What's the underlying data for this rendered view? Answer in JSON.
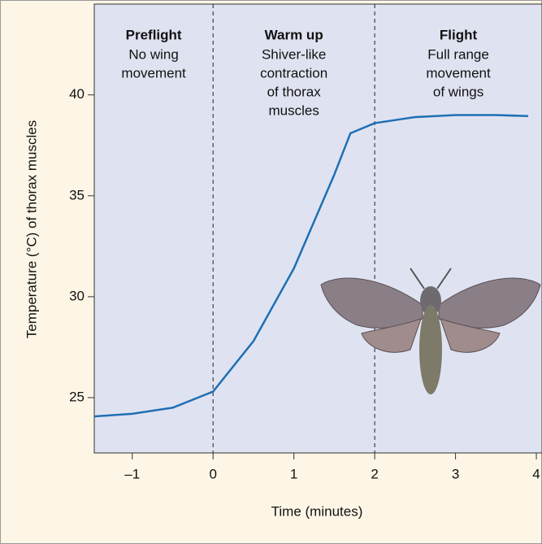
{
  "chart_data": {
    "type": "line",
    "x_label": "Time (minutes)",
    "y_label": "Temperature (°C) of thorax muscles",
    "x": [
      -1.47,
      -1,
      -0.5,
      0,
      0.5,
      1,
      1.5,
      1.7,
      2,
      2.5,
      3,
      3.5,
      3.9
    ],
    "series": [
      {
        "color": "#1f6fb5",
        "values": [
          24.07,
          24.2,
          24.5,
          25.3,
          27.8,
          31.4,
          36.05,
          38.1,
          38.6,
          38.9,
          39.0,
          39.0,
          38.95
        ]
      }
    ],
    "xlim": [
      -1.47,
      4.07
    ],
    "ylim": [
      22.26,
      44.5
    ],
    "xticks": [
      {
        "value": -1,
        "label": "–1"
      },
      0,
      1,
      2,
      3,
      4
    ],
    "yticks": [
      25,
      30,
      35,
      40
    ],
    "phase_boundaries": [
      0,
      2
    ],
    "phases": [
      {
        "title": "Preflight",
        "lines": [
          "No wing",
          "movement"
        ]
      },
      {
        "title": "Warm up",
        "lines": [
          "Shiver-like",
          "contraction",
          "of thorax",
          "muscles"
        ]
      },
      {
        "title": "Flight",
        "lines": [
          "Full range",
          "movement",
          "of wings"
        ]
      }
    ]
  }
}
